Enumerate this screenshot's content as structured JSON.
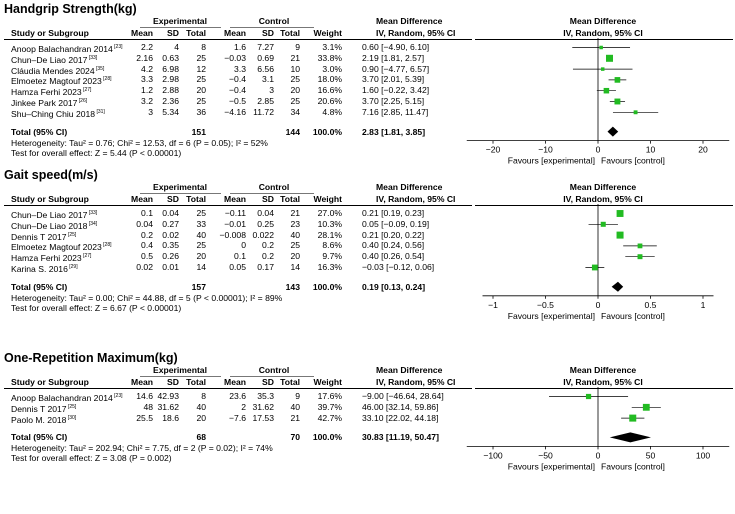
{
  "chart_data": [
    {
      "type": "forest",
      "title": "Handgrip Strength(kg)",
      "group_headers": {
        "exp": "Experimental",
        "ctrl": "Control"
      },
      "columns": [
        "Study or Subgroup",
        "Mean",
        "SD",
        "Total",
        "Mean",
        "SD",
        "Total",
        "Weight"
      ],
      "effect_header": [
        "Mean Difference",
        "IV, Random, 95% CI"
      ],
      "plot_header": [
        "Mean Difference",
        "IV, Random, 95% CI"
      ],
      "studies": [
        {
          "name": "Anoop Balachandran 2014",
          "ref": "[23]",
          "e_mean": "2.2",
          "e_sd": "4",
          "e_n": "8",
          "c_mean": "1.6",
          "c_sd": "7.27",
          "c_n": "9",
          "weight": "3.1%",
          "ci_text": "0.60 [−4.90, 6.10]",
          "est": 0.6,
          "lo": -4.9,
          "hi": 6.1,
          "w": 3.1
        },
        {
          "name": "Chun–De Liao 2017",
          "ref": "[33]",
          "e_mean": "2.16",
          "e_sd": "0.63",
          "e_n": "25",
          "c_mean": "−0.03",
          "c_sd": "0.69",
          "c_n": "21",
          "weight": "33.8%",
          "ci_text": "2.19 [1.81, 2.57]",
          "est": 2.19,
          "lo": 1.81,
          "hi": 2.57,
          "w": 33.8
        },
        {
          "name": "Cláudia Mendes 2024",
          "ref": "[35]",
          "e_mean": "4.2",
          "e_sd": "6.98",
          "e_n": "12",
          "c_mean": "3.3",
          "c_sd": "6.56",
          "c_n": "10",
          "weight": "3.0%",
          "ci_text": "0.90 [−4.77, 6.57]",
          "est": 0.9,
          "lo": -4.77,
          "hi": 6.57,
          "w": 3.0
        },
        {
          "name": "Elmoetez Magtouf 2023",
          "ref": "[28]",
          "e_mean": "3.3",
          "e_sd": "2.98",
          "e_n": "25",
          "c_mean": "−0.4",
          "c_sd": "3.1",
          "c_n": "25",
          "weight": "18.0%",
          "ci_text": "3.70 [2.01, 5.39]",
          "est": 3.7,
          "lo": 2.01,
          "hi": 5.39,
          "w": 18.0
        },
        {
          "name": "Hamza Ferhi 2023",
          "ref": "[27]",
          "e_mean": "1.2",
          "e_sd": "2.88",
          "e_n": "20",
          "c_mean": "−0.4",
          "c_sd": "3",
          "c_n": "20",
          "weight": "16.6%",
          "ci_text": "1.60 [−0.22, 3.42]",
          "est": 1.6,
          "lo": -0.22,
          "hi": 3.42,
          "w": 16.6
        },
        {
          "name": "Jinkee Park 2017",
          "ref": "[26]",
          "e_mean": "3.2",
          "e_sd": "2.36",
          "e_n": "25",
          "c_mean": "−0.5",
          "c_sd": "2.85",
          "c_n": "25",
          "weight": "20.6%",
          "ci_text": "3.70 [2.25, 5.15]",
          "est": 3.7,
          "lo": 2.25,
          "hi": 5.15,
          "w": 20.6
        },
        {
          "name": "Shu–Ching Chiu 2018",
          "ref": "[31]",
          "e_mean": "3",
          "e_sd": "5.34",
          "e_n": "36",
          "c_mean": "−4.16",
          "c_sd": "11.72",
          "c_n": "34",
          "weight": "4.8%",
          "ci_text": "7.16 [2.85, 11.47]",
          "est": 7.16,
          "lo": 2.85,
          "hi": 11.47,
          "w": 4.8
        }
      ],
      "total": {
        "label": "Total (95% CI)",
        "e_n": "151",
        "c_n": "144",
        "weight": "100.0%",
        "ci_text": "2.83 [1.81, 3.85]",
        "est": 2.83,
        "lo": 1.81,
        "hi": 3.85
      },
      "heterogeneity": "Heterogeneity: Tau² = 0.76; Chi² = 12.53, df = 6 (P = 0.05); I² = 52%",
      "overall_effect": "Test for overall effect: Z = 5.44 (P < 0.00001)",
      "xlim": [
        -25,
        25
      ],
      "ticks": [
        -20,
        -10,
        0,
        10,
        20
      ],
      "tick_labels": [
        "−20",
        "−10",
        "0",
        "10",
        "20"
      ],
      "favours_left": "Favours [experimental]",
      "favours_right": "Favours [control]"
    },
    {
      "type": "forest",
      "title": "Gait speed(m/s)",
      "group_headers": {
        "exp": "Experimental",
        "ctrl": "Control"
      },
      "columns": [
        "Study or Subgroup",
        "Mean",
        "SD",
        "Total",
        "Mean",
        "SD",
        "Total",
        "Weight"
      ],
      "effect_header": [
        "Mean Difference",
        "IV, Random, 95% CI"
      ],
      "plot_header": [
        "Mean Difference",
        "IV, Random, 95% CI"
      ],
      "studies": [
        {
          "name": "Chun–De Liao 2017",
          "ref": "[33]",
          "e_mean": "0.1",
          "e_sd": "0.04",
          "e_n": "25",
          "c_mean": "−0.11",
          "c_sd": "0.04",
          "c_n": "21",
          "weight": "27.0%",
          "ci_text": "0.21 [0.19, 0.23]",
          "est": 0.21,
          "lo": 0.19,
          "hi": 0.23,
          "w": 27.0
        },
        {
          "name": "Chun–De Liao 2018",
          "ref": "[34]",
          "e_mean": "0.04",
          "e_sd": "0.27",
          "e_n": "33",
          "c_mean": "−0.01",
          "c_sd": "0.25",
          "c_n": "23",
          "weight": "10.3%",
          "ci_text": "0.05 [−0.09, 0.19]",
          "est": 0.05,
          "lo": -0.09,
          "hi": 0.19,
          "w": 10.3
        },
        {
          "name": "Dennis T 2017",
          "ref": "[25]",
          "e_mean": "0.2",
          "e_sd": "0.02",
          "e_n": "40",
          "c_mean": "−0.008",
          "c_sd": "0.022",
          "c_n": "40",
          "weight": "28.1%",
          "ci_text": "0.21 [0.20, 0.22]",
          "est": 0.21,
          "lo": 0.2,
          "hi": 0.22,
          "w": 28.1
        },
        {
          "name": "Elmoetez Magtouf 2023",
          "ref": "[28]",
          "e_mean": "0.4",
          "e_sd": "0.35",
          "e_n": "25",
          "c_mean": "0",
          "c_sd": "0.2",
          "c_n": "25",
          "weight": "8.6%",
          "ci_text": "0.40 [0.24, 0.56]",
          "est": 0.4,
          "lo": 0.24,
          "hi": 0.56,
          "w": 8.6
        },
        {
          "name": "Hamza Ferhi 2023",
          "ref": "[27]",
          "e_mean": "0.5",
          "e_sd": "0.26",
          "e_n": "20",
          "c_mean": "0.1",
          "c_sd": "0.2",
          "c_n": "20",
          "weight": "9.7%",
          "ci_text": "0.40 [0.26, 0.54]",
          "est": 0.4,
          "lo": 0.26,
          "hi": 0.54,
          "w": 9.7
        },
        {
          "name": "Karina S. 2016",
          "ref": "[29]",
          "e_mean": "0.02",
          "e_sd": "0.01",
          "e_n": "14",
          "c_mean": "0.05",
          "c_sd": "0.17",
          "c_n": "14",
          "weight": "16.3%",
          "ci_text": "−0.03 [−0.12, 0.06]",
          "est": -0.03,
          "lo": -0.12,
          "hi": 0.06,
          "w": 16.3
        }
      ],
      "total": {
        "label": "Total (95% CI)",
        "e_n": "157",
        "c_n": "143",
        "weight": "100.0%",
        "ci_text": "0.19 [0.13, 0.24]",
        "est": 0.19,
        "lo": 0.13,
        "hi": 0.24
      },
      "heterogeneity": "Heterogeneity: Tau² = 0.00; Chi² = 44.88, df = 5 (P < 0.00001); I² = 89%",
      "overall_effect": "Test for overall effect: Z = 6.67 (P < 0.00001)",
      "xlim": [
        -1.1,
        1.1
      ],
      "ticks": [
        -1,
        -0.5,
        0,
        0.5,
        1
      ],
      "tick_labels": [
        "−1",
        "−0.5",
        "0",
        "0.5",
        "1"
      ],
      "favours_left": "Favours [experimental]",
      "favours_right": "Favours [control]"
    },
    {
      "type": "forest",
      "title": "One-Repetition Maximum(kg)",
      "group_headers": {
        "exp": "Experimental",
        "ctrl": "Control"
      },
      "columns": [
        "Study or Subgroup",
        "Mean",
        "SD",
        "Total",
        "Mean",
        "SD",
        "Total",
        "Weight"
      ],
      "effect_header": [
        "Mean Difference",
        "IV, Random, 95% CI"
      ],
      "plot_header": [
        "Mean Difference",
        "IV, Random, 95% CI"
      ],
      "studies": [
        {
          "name": "Anoop Balachandran 2014",
          "ref": "[23]",
          "e_mean": "14.6",
          "e_sd": "42.93",
          "e_n": "8",
          "c_mean": "23.6",
          "c_sd": "35.3",
          "c_n": "9",
          "weight": "17.6%",
          "ci_text": "−9.00 [−46.64, 28.64]",
          "est": -9.0,
          "lo": -46.64,
          "hi": 28.64,
          "w": 17.6
        },
        {
          "name": "Dennis T 2017",
          "ref": "[25]",
          "e_mean": "48",
          "e_sd": "31.62",
          "e_n": "40",
          "c_mean": "2",
          "c_sd": "31.62",
          "c_n": "40",
          "weight": "39.7%",
          "ci_text": "46.00 [32.14, 59.86]",
          "est": 46.0,
          "lo": 32.14,
          "hi": 59.86,
          "w": 39.7
        },
        {
          "name": "Paolo M. 2018",
          "ref": "[30]",
          "e_mean": "25.5",
          "e_sd": "18.6",
          "e_n": "20",
          "c_mean": "−7.6",
          "c_sd": "17.53",
          "c_n": "21",
          "weight": "42.7%",
          "ci_text": "33.10 [22.02, 44.18]",
          "est": 33.1,
          "lo": 22.02,
          "hi": 44.18,
          "w": 42.7
        }
      ],
      "total": {
        "label": "Total (95% CI)",
        "e_n": "68",
        "c_n": "70",
        "weight": "100.0%",
        "ci_text": "30.83 [11.19, 50.47]",
        "est": 30.83,
        "lo": 11.19,
        "hi": 50.47
      },
      "heterogeneity": "Heterogeneity: Tau² = 202.94; Chi² = 7.75, df = 2 (P = 0.02); I² = 74%",
      "overall_effect": "Test for overall effect: Z = 3.08 (P = 0.002)",
      "xlim": [
        -125,
        125
      ],
      "ticks": [
        -100,
        -50,
        0,
        50,
        100
      ],
      "tick_labels": [
        "−100",
        "−50",
        "0",
        "50",
        "100"
      ],
      "favours_left": "Favours [experimental]",
      "favours_right": "Favours [control]"
    }
  ],
  "colors": {
    "square": "#22bb22",
    "diamond": "#000000",
    "line": "#000000"
  }
}
